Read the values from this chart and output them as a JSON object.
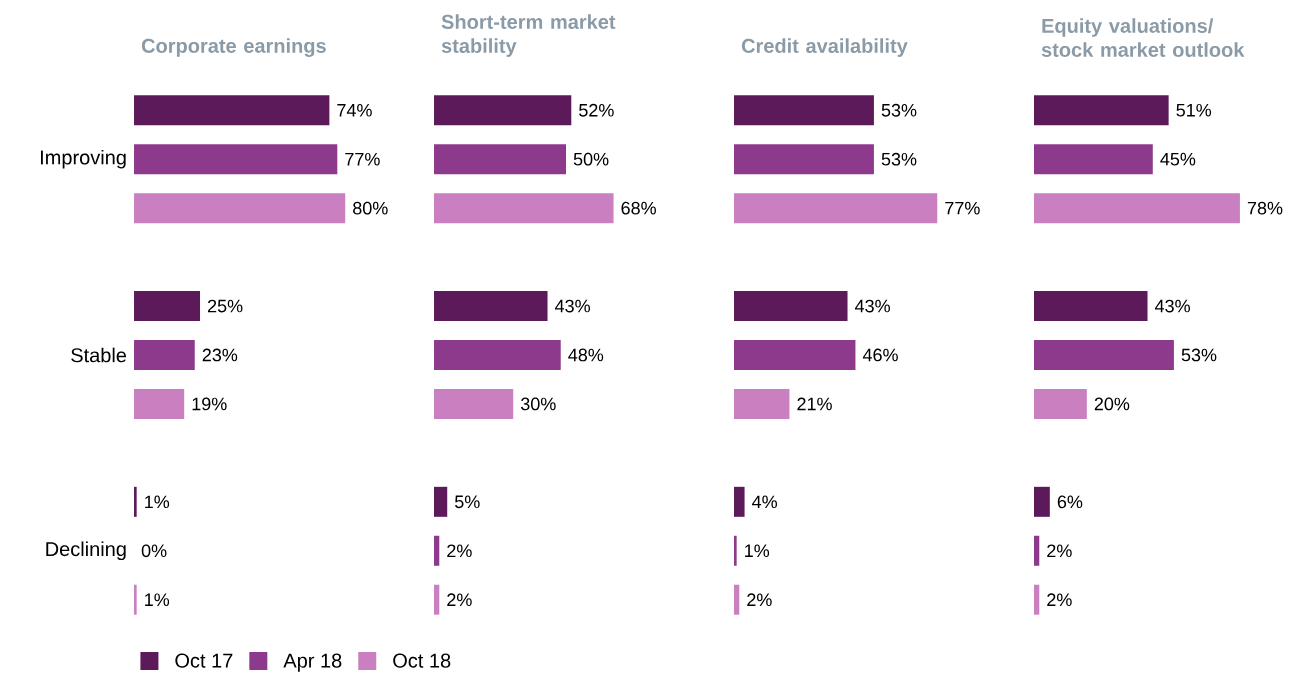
{
  "chart_data": [
    {
      "type": "bar",
      "orientation": "horizontal",
      "title": "Corporate earnings",
      "categories": [
        "Improving",
        "Stable",
        "Declining"
      ],
      "tick_labels": "y",
      "legend": "bottom",
      "series": [
        {
          "name": "Oct 17",
          "color": "#5c1a5a",
          "values": [
            74,
            25,
            1
          ],
          "value_labels": [
            "74%",
            "25%",
            "1%"
          ]
        },
        {
          "name": "Apr 18",
          "color": "#8e3a8c",
          "values": [
            77,
            23,
            0
          ],
          "value_labels": [
            "77%",
            "23%",
            "0%"
          ]
        },
        {
          "name": "Oct 18",
          "color": "#c97fc0",
          "values": [
            80,
            19,
            1
          ],
          "value_labels": [
            "80%",
            "19%",
            "1%"
          ]
        }
      ]
    },
    {
      "type": "bar",
      "orientation": "horizontal",
      "title": "Short-term market stability",
      "categories": [
        null,
        null,
        null
      ],
      "tick_labels": false,
      "series": [
        {
          "color": "#5c1a5a",
          "values": [
            52,
            43,
            5
          ],
          "value_labels": [
            "52%",
            "43%",
            "5%"
          ]
        },
        {
          "color": "#8e3a8c",
          "values": [
            50,
            48,
            2
          ],
          "value_labels": [
            "50%",
            "48%",
            "2%"
          ]
        },
        {
          "color": "#c97fc0",
          "values": [
            68,
            30,
            2
          ],
          "value_labels": [
            "68%",
            "30%",
            "2%"
          ]
        }
      ]
    },
    {
      "type": "bar",
      "orientation": "horizontal",
      "title": "Credit availability",
      "categories": [
        null,
        null,
        null
      ],
      "tick_labels": false,
      "series": [
        {
          "color": "#5c1a5a",
          "values": [
            53,
            43,
            4
          ],
          "value_labels": [
            "53%",
            "43%",
            "4%"
          ]
        },
        {
          "color": "#8e3a8c",
          "values": [
            53,
            46,
            1
          ],
          "value_labels": [
            "53%",
            "46%",
            "1%"
          ]
        },
        {
          "color": "#c97fc0",
          "values": [
            77,
            21,
            2
          ],
          "value_labels": [
            "77%",
            "21%",
            "2%"
          ]
        }
      ]
    },
    {
      "type": "bar",
      "orientation": "horizontal",
      "title": "Equity valuations/ stock market outlook",
      "categories": [
        null,
        null,
        null
      ],
      "tick_labels": false,
      "series": [
        {
          "color": "#5c1a5a",
          "values": [
            51,
            43,
            6
          ],
          "value_labels": [
            "51%",
            "43%",
            "6%"
          ]
        },
        {
          "color": "#8e3a8c",
          "values": [
            45,
            53,
            2
          ],
          "value_labels": [
            "45%",
            "53%",
            "2%"
          ]
        },
        {
          "color": "#c97fc0",
          "values": [
            78,
            20,
            2
          ],
          "value_labels": [
            "78%",
            "20%",
            "2%"
          ]
        }
      ]
    }
  ]
}
